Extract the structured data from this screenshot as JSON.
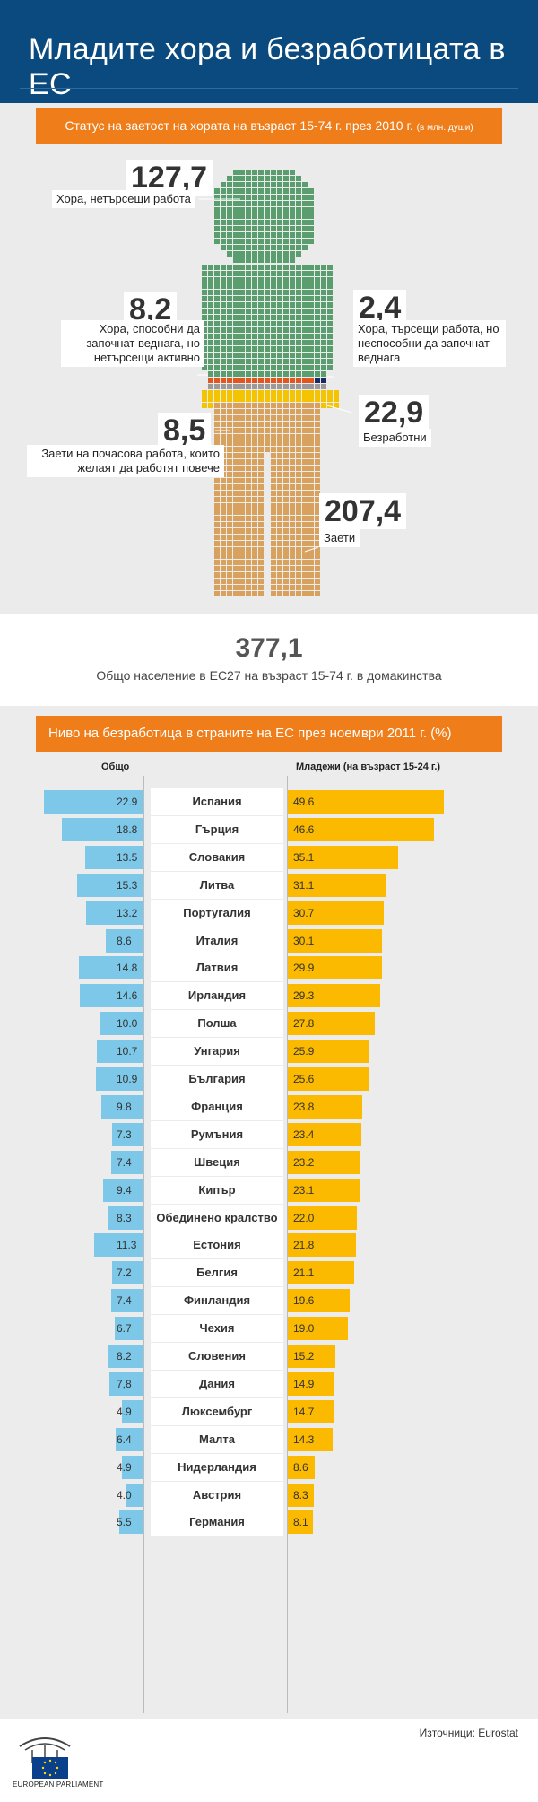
{
  "header": {
    "title": "Младите хора и безработицата в ЕС"
  },
  "status": {
    "bar_title": "Статус на заетост на хората на възраст 15-74 г. през 2010 г.",
    "bar_unit": "(в млн. души)",
    "groups": [
      {
        "value": "127,7",
        "label": "Хора, нетърсещи работа",
        "color": "#5a9e6f"
      },
      {
        "value": "8,2",
        "label": "Хора, способни да започнат веднага, но нетърсещи активно",
        "color": "#e3551f"
      },
      {
        "value": "2,4",
        "label": "Хора, търсещи работа, но неспособни да започнат веднага",
        "color": "#1b2a5e"
      },
      {
        "value": "22,9",
        "label": "Безработни",
        "color": "#f5c400"
      },
      {
        "value": "8,5",
        "label": "Заети на почасова работа, които желаят да работят повече",
        "color": "#9a9a9a"
      },
      {
        "value": "207,4",
        "label": "Заети",
        "color": "#d9a15e"
      }
    ],
    "total_value": "377,1",
    "total_label": "Общо население в ЕС27 на възраст 15-74 г. в домакинства"
  },
  "chart_data": {
    "type": "bar",
    "title": "Ниво на безработица в страните на ЕС през ноември 2011 г. (%)",
    "left_label": "Общо",
    "right_label": "Младежи (на възраст 15-24 г.)",
    "categories": [
      "Испания",
      "Гърция",
      "Словакия",
      "Литва",
      "Португалия",
      "Италия",
      "Латвия",
      "Ирландия",
      "Полша",
      "Унгария",
      "България",
      "Франция",
      "Румъния",
      "Швеция",
      "Кипър",
      "Обединено кралство",
      "Естония",
      "Белгия",
      "Финландия",
      "Чехия",
      "Словения",
      "Дания",
      "Люксембург",
      "Малта",
      "Нидерландия",
      "Австрия",
      "Германия"
    ],
    "series": [
      {
        "name": "Общо",
        "color": "#7dc8e8",
        "values": [
          22.9,
          18.8,
          13.5,
          15.3,
          13.2,
          8.6,
          14.8,
          14.6,
          10.0,
          10.7,
          10.9,
          9.8,
          7.3,
          7.4,
          9.4,
          8.3,
          11.3,
          7.2,
          7.4,
          6.7,
          8.2,
          7.8,
          4.9,
          6.4,
          4.9,
          4.0,
          5.5
        ],
        "labels": [
          "22.9",
          "18.8",
          "13.5",
          "15.3",
          "13.2",
          "8.6",
          "14.8",
          "14.6",
          "10.0",
          "10.7",
          "10.9",
          "9.8",
          "7.3",
          "7.4",
          "9.4",
          "8.3",
          "11.3",
          "7.2",
          "7.4",
          "6.7",
          "8.2",
          "7,8",
          "4.9",
          "6.4",
          "4.9",
          "4.0",
          "5.5"
        ]
      },
      {
        "name": "Младежи (на възраст 15-24 г.)",
        "color": "#fbb900",
        "values": [
          49.6,
          46.6,
          35.1,
          31.1,
          30.7,
          30.1,
          29.9,
          29.3,
          27.8,
          25.9,
          25.6,
          23.8,
          23.4,
          23.2,
          23.1,
          22.0,
          21.8,
          21.1,
          19.6,
          19.0,
          15.2,
          14.9,
          14.7,
          14.3,
          8.6,
          8.3,
          8.1
        ],
        "labels": [
          "49.6",
          "46.6",
          "35.1",
          "31.1",
          "30.7",
          "30.1",
          "29.9",
          "29.3",
          "27.8",
          "25.9",
          "25.6",
          "23.8",
          "23.4",
          "23.2",
          "23.1",
          "22.0",
          "21.8",
          "21.1",
          "19.6",
          "19.0",
          "15.2",
          "14.9",
          "14.7",
          "14.3",
          "8.6",
          "8.3",
          "8.1"
        ]
      }
    ]
  },
  "footer": {
    "source": "Източници: Eurostat",
    "logo_text": "EUROPEAN PARLIAMENT"
  }
}
